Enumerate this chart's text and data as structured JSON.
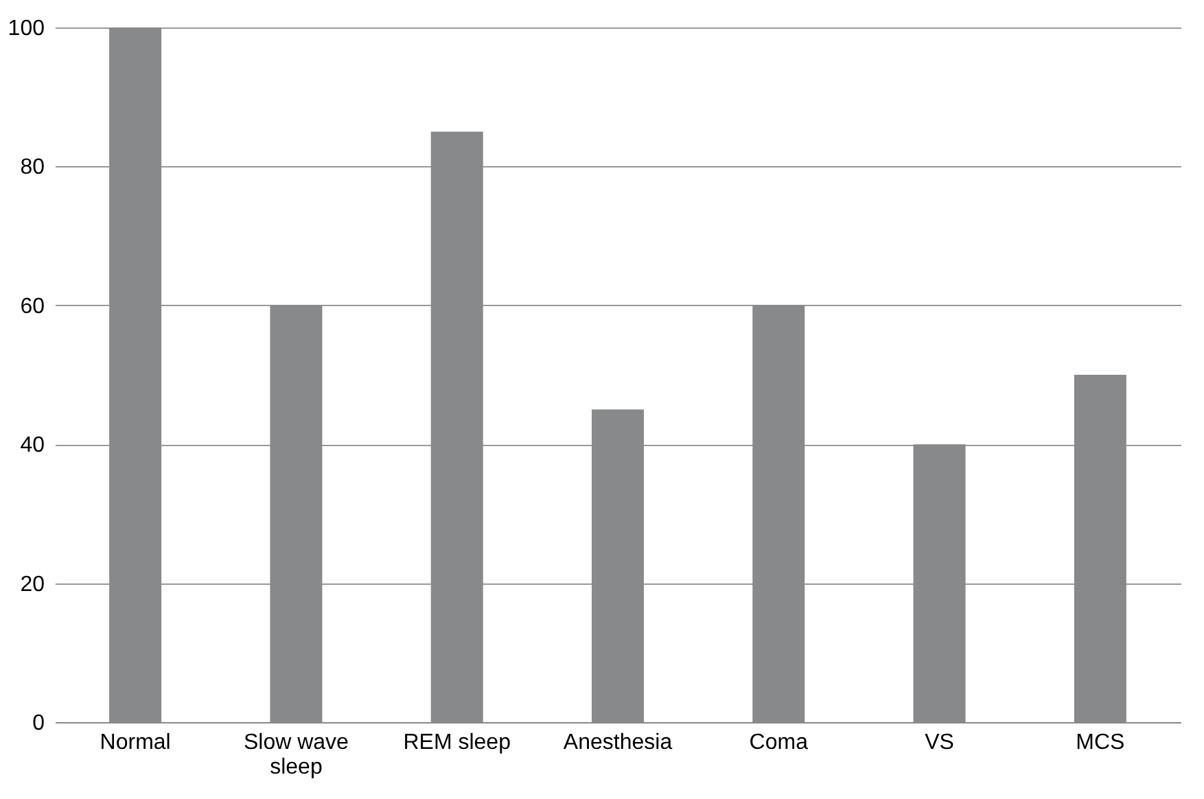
{
  "chart_data": {
    "type": "bar",
    "categories": [
      "Normal",
      "Slow wave sleep",
      "REM sleep",
      "Anesthesia",
      "Coma",
      "VS",
      "MCS"
    ],
    "values": [
      100,
      60,
      85,
      45,
      60,
      40,
      50
    ],
    "color": "#88898b",
    "ylim": [
      0,
      100
    ],
    "yticks": [
      0,
      20,
      40,
      60,
      80,
      100
    ],
    "grid": "y"
  }
}
